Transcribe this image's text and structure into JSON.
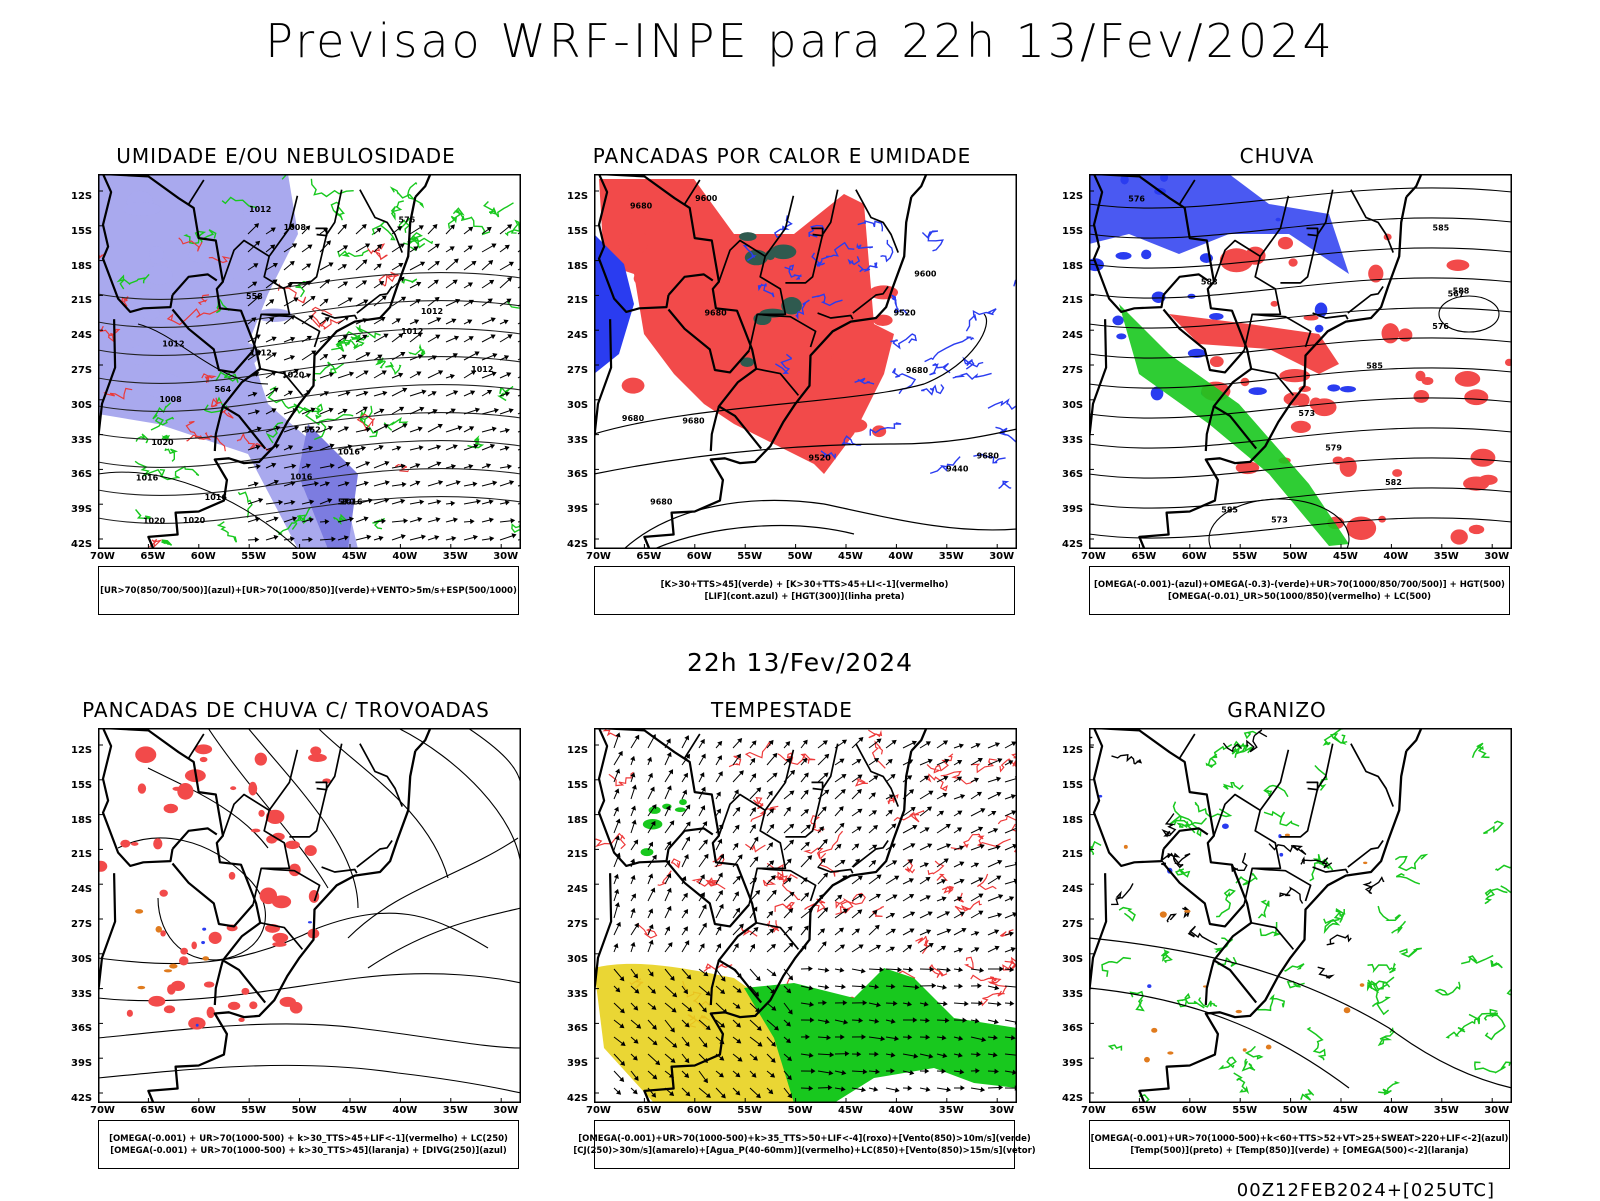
{
  "title": "Previsao WRF-INPE  para 22h 13/Fev/2024",
  "middle_title": "22h 13/Fev/2024",
  "footer": "00Z12FEB2024+[025UTC]",
  "lat_labels": [
    "12S",
    "15S",
    "18S",
    "21S",
    "24S",
    "27S",
    "30S",
    "33S",
    "36S",
    "39S",
    "42S"
  ],
  "lon_labels": [
    "70W",
    "65W",
    "60W",
    "55W",
    "50W",
    "45W",
    "40W",
    "35W",
    "30W"
  ],
  "colors": {
    "blue": "#2a3cf0",
    "lavender": "#a9a9ee",
    "green": "#18c81e",
    "red": "#f24a4a",
    "yellow": "#e8d21e",
    "darkgreen": "#2f5a4f",
    "orange": "#e07b1e"
  },
  "panels": [
    {
      "title": "UMIDADE E/OU NEBULOSIDADE",
      "legend": [
        "[UR>70(850/700/500)](azul)+[UR>70(1000/850)](verde)+VENTO>5m/s+ESP(500/1000)"
      ],
      "contour_labels": [
        "1016",
        "1016",
        "1016",
        "1012",
        "1020",
        "1012",
        "1020",
        "1016",
        "1012",
        "1016",
        "1012",
        "1020",
        "1012",
        "1020",
        "1012",
        "1008",
        "1008",
        "576",
        "570",
        "564",
        "558",
        "552"
      ]
    },
    {
      "title": "PANCADAS POR CALOR E UMIDADE",
      "legend": [
        "[K>30+TTS>45](verde) + [K>30+TTS>45+LI<-1](vermelho)",
        "[LIF](cont.azul) + [HGT(300)](linha preta)"
      ],
      "contour_labels": [
        "9680",
        "9680",
        "9680",
        "9680",
        "9680",
        "9600",
        "9600",
        "9520",
        "9440",
        "9520",
        "9680",
        "9680"
      ]
    },
    {
      "title": "CHUVA",
      "legend": [
        "[OMEGA(-0.001)-(azul)+OMEGA(-0.3)-(verde)+UR>70(1000/850/700/500)] + HGT(500)",
        "[OMEGA(-0.01)_UR>50(1000/850)(vermelho) + LC(500)"
      ],
      "contour_labels": [
        "588",
        "588",
        "585",
        "585",
        "585",
        "582",
        "579",
        "576",
        "573",
        "573",
        "567",
        "576"
      ]
    },
    {
      "title": "PANCADAS DE CHUVA C/ TROVOADAS",
      "legend": [
        "[OMEGA(-0.001) + UR>70(1000-500) + k>30_TTS>45+LIF<-1](vermelho) + LC(250)",
        "[OMEGA(-0.001) + UR>70(1000-500) + k>30_TTS>45](laranja) + [DIVG(250)](azul)"
      ],
      "contour_labels": []
    },
    {
      "title": "TEMPESTADE",
      "legend": [
        "[OMEGA(-0.001)+UR>70(1000-500)+k>35_TTS>50+LIF<-4](roxo)+[Vento(850)>10m/s](verde)",
        "[CJ(250)>30m/s](amarelo)+[Agua_P(40-60mm)](vermelho)+LC(850)+[Vento(850)>15m/s](vetor)"
      ],
      "contour_labels": []
    },
    {
      "title": "GRANIZO",
      "legend": [
        "[OMEGA(-0.001)+UR>70(1000-500)+k<60+TTS>52+VT>25+SWEAT>220+LIF<-2](azul)",
        "[Temp(500)](preto) + [Temp(850)](verde) + [OMEGA(500)<-2](laranja)"
      ],
      "contour_labels": []
    }
  ]
}
